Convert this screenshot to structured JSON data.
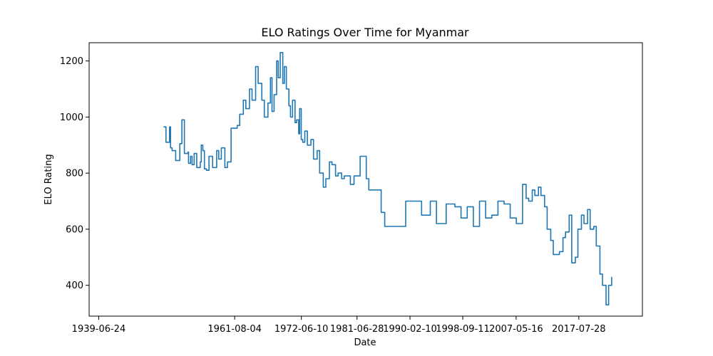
{
  "chart_data": {
    "type": "line",
    "title": "ELO Ratings Over Time for Myanmar",
    "xlabel": "Date",
    "ylabel": "ELO Rating",
    "x_ticks": [
      "1939-06-24",
      "1961-08-04",
      "1972-06-10",
      "1981-06-28",
      "1990-02-10",
      "1998-09-11",
      "2007-05-16",
      "2017-07-28"
    ],
    "y_ticks": [
      400,
      600,
      800,
      1000,
      1200
    ],
    "xlim": [
      "1937-12-01",
      "2027-12-01"
    ],
    "ylim": [
      290,
      1265
    ],
    "grid": false,
    "color": "#1f77b4",
    "series": [
      {
        "x": [
          "1950-01-01",
          "1950-06-01",
          "1951-01-01",
          "1951-03-01",
          "1951-06-01",
          "1952-01-01",
          "1952-09-01",
          "1953-01-01",
          "1953-06-01",
          "1954-01-01",
          "1954-02-01",
          "1954-06-01",
          "1954-09-01",
          "1955-01-01",
          "1955-06-01",
          "1956-01-01",
          "1956-03-01",
          "1956-06-01",
          "1956-09-01",
          "1957-01-01",
          "1957-06-01",
          "1958-01-01",
          "1958-09-01",
          "1959-01-01",
          "1959-06-01",
          "1960-01-01",
          "1960-06-01",
          "1961-01-01",
          "1962-01-01",
          "1962-06-01",
          "1963-01-01",
          "1963-06-01",
          "1964-01-01",
          "1964-06-01",
          "1965-01-01",
          "1965-06-01",
          "1966-01-01",
          "1966-06-01",
          "1967-01-01",
          "1967-06-01",
          "1967-09-01",
          "1968-01-01",
          "1968-06-01",
          "1968-09-01",
          "1969-01-01",
          "1969-06-01",
          "1969-09-01",
          "1970-01-01",
          "1970-06-01",
          "1970-09-01",
          "1971-01-01",
          "1971-06-01",
          "1971-09-01",
          "1972-01-01",
          "1972-03-01",
          "1972-06-01",
          "1972-09-01",
          "1973-01-01",
          "1973-06-01",
          "1974-01-01",
          "1974-06-01",
          "1975-01-01",
          "1975-06-01",
          "1976-01-01",
          "1976-06-01",
          "1977-01-01",
          "1977-06-01",
          "1978-01-01",
          "1978-06-01",
          "1979-01-01",
          "1979-06-01",
          "1980-01-01",
          "1980-06-01",
          "1981-01-01",
          "1982-01-01",
          "1983-01-01",
          "1983-06-01",
          "1984-01-01",
          "1984-06-01",
          "1985-01-01",
          "1985-06-01",
          "1986-01-01",
          "1988-06-01",
          "1989-06-01",
          "1992-01-01",
          "1993-06-01",
          "1994-06-01",
          "1996-01-01",
          "1997-06-01",
          "1998-06-01",
          "1999-06-01",
          "2000-06-01",
          "2001-06-01",
          "2002-06-01",
          "2003-06-01",
          "2004-06-01",
          "2005-06-01",
          "2006-06-01",
          "2007-06-01",
          "2008-01-01",
          "2008-06-01",
          "2009-01-01",
          "2009-06-01",
          "2010-01-01",
          "2010-06-01",
          "2011-01-01",
          "2011-06-01",
          "2012-01-01",
          "2012-06-01",
          "2013-01-01",
          "2013-06-01",
          "2014-01-01",
          "2014-06-01",
          "2015-01-01",
          "2015-06-01",
          "2016-01-01",
          "2016-06-01",
          "2017-01-01",
          "2017-06-01",
          "2018-01-01",
          "2018-06-01",
          "2019-01-01",
          "2019-06-01",
          "2020-01-01",
          "2020-06-01",
          "2021-01-01",
          "2021-06-01",
          "2022-01-01",
          "2022-06-01",
          "2022-12-01"
        ],
        "y": [
          965,
          910,
          965,
          890,
          880,
          845,
          905,
          990,
          870,
          875,
          835,
          860,
          830,
          870,
          820,
          840,
          900,
          880,
          815,
          810,
          860,
          820,
          880,
          850,
          890,
          820,
          840,
          960,
          970,
          1010,
          1060,
          1030,
          1100,
          1060,
          1180,
          1120,
          1060,
          1000,
          1050,
          1140,
          1020,
          1080,
          1200,
          1140,
          1230,
          1120,
          1180,
          1100,
          1040,
          1000,
          1060,
          980,
          990,
          940,
          1030,
          920,
          910,
          950,
          900,
          920,
          850,
          880,
          800,
          750,
          780,
          840,
          830,
          790,
          800,
          780,
          790,
          790,
          760,
          790,
          860,
          780,
          740,
          740,
          740,
          740,
          660,
          610,
          610,
          700,
          650,
          700,
          620,
          690,
          680,
          640,
          680,
          610,
          700,
          640,
          650,
          700,
          690,
          640,
          620,
          620,
          760,
          710,
          700,
          740,
          720,
          750,
          720,
          680,
          600,
          560,
          510,
          510,
          520,
          570,
          590,
          650,
          480,
          500,
          600,
          650,
          620,
          670,
          600,
          610,
          540,
          440,
          400,
          330,
          400,
          430
        ]
      }
    ]
  }
}
